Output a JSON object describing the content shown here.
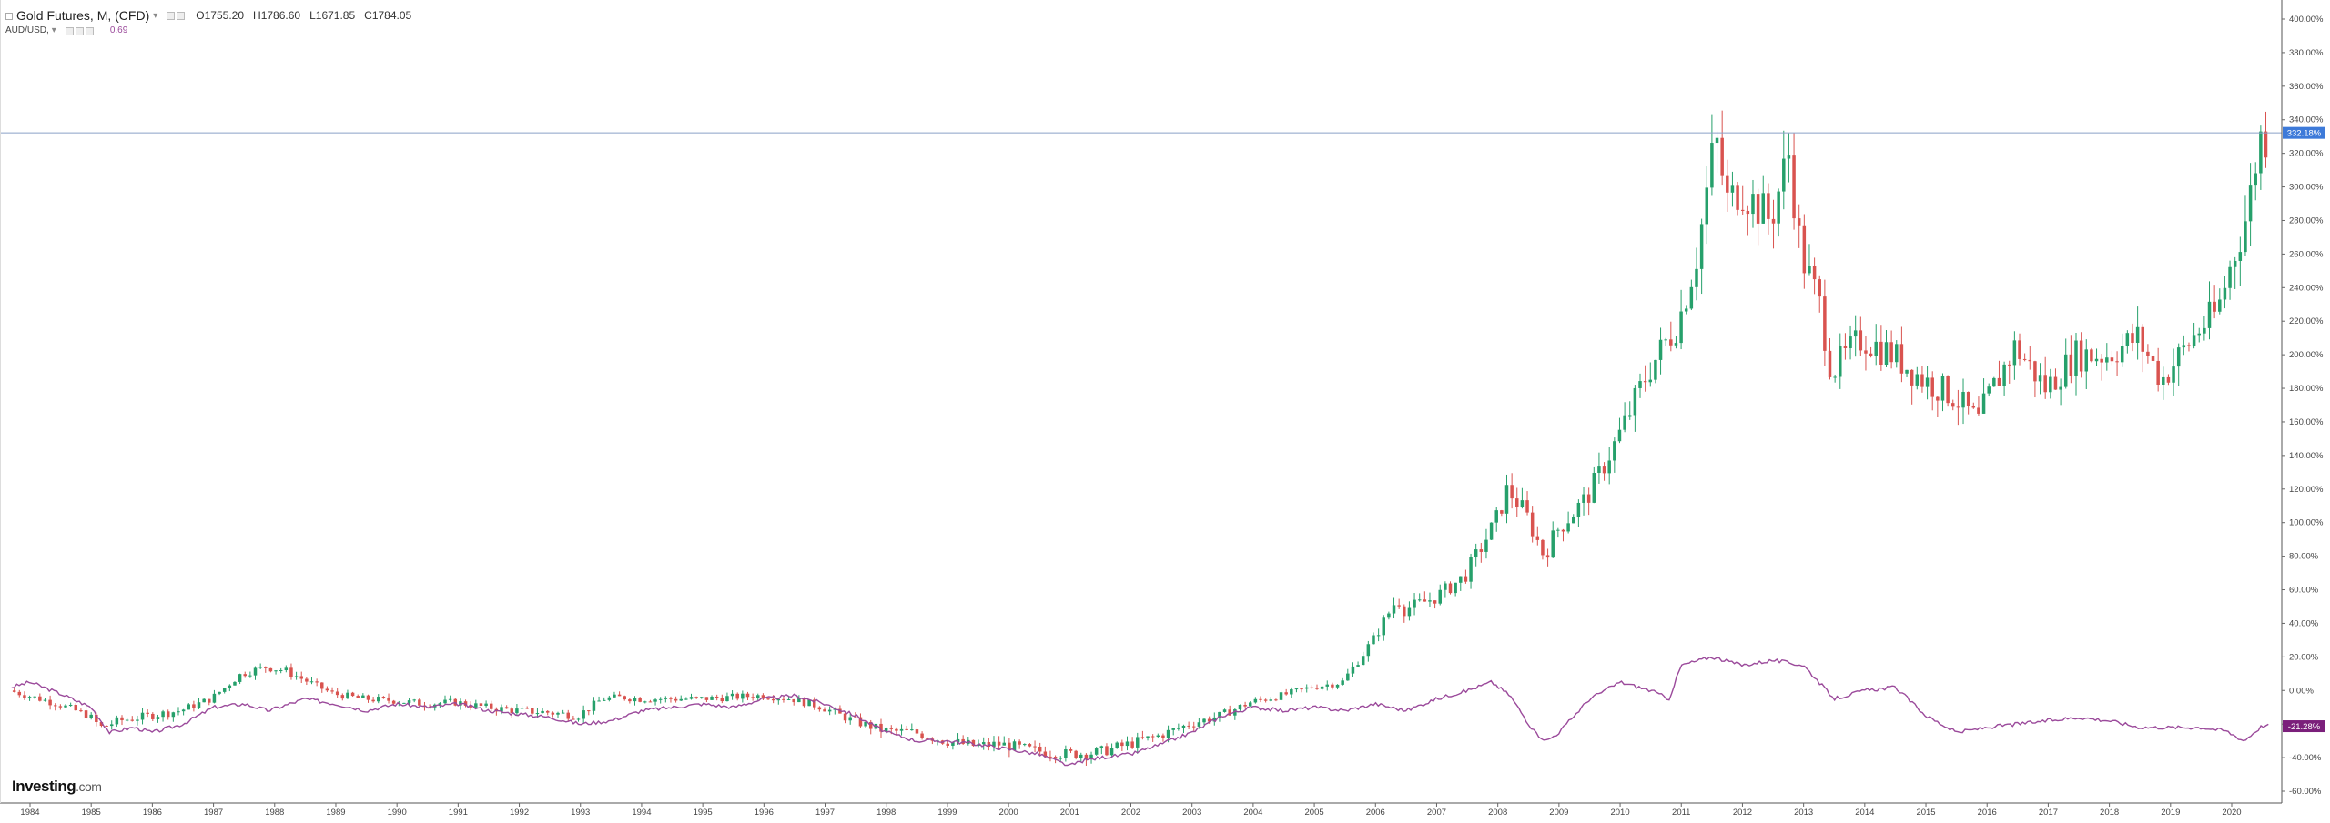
{
  "legend": {
    "main_title": "Gold Futures, M, (CFD)",
    "open_label": "O",
    "open_value": "1755.20",
    "high_label": "H",
    "high_value": "1786.60",
    "low_label": "L",
    "low_value": "1671.85",
    "close_label": "C",
    "close_value": "1784.05",
    "compare_title": "AUD/USD,",
    "compare_value": "0.69"
  },
  "logo": {
    "brand": "Investing",
    "domain": ".com"
  },
  "colors": {
    "up": "#26a06b",
    "down": "#d9534f",
    "compare_line": "#9b4a9b",
    "last_price_badge": "#3d7ad9",
    "compare_badge": "#7b1f7b",
    "grid": "#e6e6e6"
  },
  "chart_data": {
    "type": "candlestick+line",
    "x_ticks": [
      "1984",
      "1985",
      "1986",
      "1987",
      "1988",
      "1989",
      "1990",
      "1991",
      "1992",
      "1993",
      "1994",
      "1995",
      "1996",
      "1997",
      "1998",
      "1999",
      "2000",
      "2001",
      "2002",
      "2003",
      "2004",
      "2005",
      "2006",
      "2007",
      "2008",
      "2009",
      "2010",
      "2011",
      "2012",
      "2013",
      "2014",
      "2015",
      "2016",
      "2017",
      "2018",
      "2019",
      "2020"
    ],
    "y_ticks": [
      "400.00%",
      "380.00%",
      "360.00%",
      "340.00%",
      "320.00%",
      "300.00%",
      "280.00%",
      "260.00%",
      "240.00%",
      "220.00%",
      "200.00%",
      "180.00%",
      "160.00%",
      "140.00%",
      "120.00%",
      "100.00%",
      "80.00%",
      "60.00%",
      "40.00%",
      "20.00%",
      "0.00%",
      "-20.00%",
      "-40.00%",
      "-60.00%"
    ],
    "y_range": [
      -60,
      400
    ],
    "x_range": [
      1983.7,
      2020.6
    ],
    "y_unit": "percent change",
    "last_price_label": "332.18%",
    "last_price_value": 332.18,
    "compare_label": "-21.28%",
    "compare_last_value": -21.28,
    "gold_series": {
      "name": "Gold Futures",
      "x": [
        1983.7,
        1984.0,
        1984.5,
        1985.0,
        1985.2,
        1985.5,
        1986.0,
        1986.5,
        1987.0,
        1987.5,
        1987.9,
        1988.2,
        1988.6,
        1989.0,
        1989.5,
        1990.0,
        1990.5,
        1991.0,
        1991.5,
        1992.0,
        1992.5,
        1993.0,
        1993.4,
        1993.7,
        1994.0,
        1994.5,
        1995.0,
        1995.5,
        1996.0,
        1996.5,
        1997.0,
        1997.5,
        1998.0,
        1998.5,
        1999.0,
        1999.5,
        1999.9,
        2000.5,
        2001.0,
        2001.5,
        2002.0,
        2002.5,
        2003.0,
        2003.5,
        2004.0,
        2004.5,
        2005.0,
        2005.5,
        2006.0,
        2006.4,
        2006.5,
        2007.0,
        2007.5,
        2008.0,
        2008.2,
        2008.5,
        2008.8,
        2009.0,
        2009.5,
        2010.0,
        2010.5,
        2011.0,
        2011.3,
        2011.6,
        2011.8,
        2012.0,
        2012.5,
        2012.8,
        2013.0,
        2013.3,
        2013.5,
        2014.0,
        2014.5,
        2015.0,
        2015.5,
        2015.9,
        2016.0,
        2016.5,
        2017.0,
        2017.5,
        2018.0,
        2018.5,
        2018.9,
        2019.0,
        2019.5,
        2019.8,
        2020.0,
        2020.3,
        2020.5
      ],
      "y": [
        0,
        -3,
        -8,
        -15,
        -22,
        -18,
        -15,
        -12,
        -5,
        10,
        14,
        12,
        5,
        -2,
        -5,
        -6,
        -8,
        -7,
        -10,
        -12,
        -13,
        -15,
        -5,
        -4,
        -5,
        -5,
        -5,
        -4,
        -3,
        -5,
        -10,
        -18,
        -24,
        -25,
        -30,
        -33,
        -32,
        -36,
        -38,
        -37,
        -32,
        -27,
        -20,
        -15,
        -7,
        -3,
        2,
        5,
        30,
        55,
        48,
        55,
        68,
        100,
        120,
        105,
        80,
        95,
        115,
        150,
        190,
        220,
        260,
        330,
        290,
        300,
        280,
        320,
        260,
        230,
        190,
        210,
        200,
        185,
        175,
        160,
        170,
        205,
        180,
        200,
        200,
        210,
        185,
        190,
        215,
        225,
        250,
        285,
        330
      ],
      "candle_count": 440
    },
    "audusd_series": {
      "name": "AUD/USD",
      "x": [
        1983.7,
        1984.0,
        1984.5,
        1985.0,
        1985.3,
        1985.7,
        1986.0,
        1986.5,
        1987.0,
        1987.5,
        1987.9,
        1988.5,
        1989.0,
        1989.5,
        1990.0,
        1990.5,
        1991.0,
        1991.5,
        1992.0,
        1992.5,
        1993.0,
        1993.5,
        1994.0,
        1994.5,
        1995.0,
        1995.5,
        1996.0,
        1996.5,
        1997.0,
        1997.5,
        1998.0,
        1998.5,
        1999.0,
        1999.5,
        2000.0,
        2000.5,
        2001.0,
        2001.2,
        2001.5,
        2002.0,
        2002.5,
        2003.0,
        2003.5,
        2004.0,
        2004.5,
        2005.0,
        2005.5,
        2006.0,
        2006.5,
        2007.0,
        2007.5,
        2007.9,
        2008.2,
        2008.6,
        2008.8,
        2009.0,
        2009.5,
        2010.0,
        2010.5,
        2010.8,
        2011.0,
        2011.5,
        2012.0,
        2012.5,
        2013.0,
        2013.5,
        2014.0,
        2014.5,
        2015.0,
        2015.5,
        2016.0,
        2016.5,
        2017.0,
        2017.5,
        2018.0,
        2018.5,
        2019.0,
        2019.5,
        2019.9,
        2020.2,
        2020.5
      ],
      "y": [
        2,
        5,
        -2,
        -10,
        -25,
        -22,
        -25,
        -20,
        -10,
        -8,
        -12,
        -5,
        -8,
        -12,
        -8,
        -10,
        -8,
        -12,
        -14,
        -16,
        -20,
        -18,
        -12,
        -10,
        -8,
        -10,
        -5,
        -3,
        -8,
        -15,
        -25,
        -30,
        -30,
        -32,
        -35,
        -38,
        -45,
        -42,
        -40,
        -38,
        -32,
        -25,
        -15,
        -10,
        -12,
        -10,
        -12,
        -8,
        -12,
        -5,
        0,
        5,
        -3,
        -25,
        -30,
        -25,
        -5,
        5,
        0,
        -5,
        15,
        20,
        15,
        18,
        15,
        -5,
        0,
        2,
        -15,
        -25,
        -22,
        -20,
        -18,
        -16,
        -18,
        -22,
        -22,
        -22,
        -24,
        -30,
        -21
      ]
    }
  }
}
